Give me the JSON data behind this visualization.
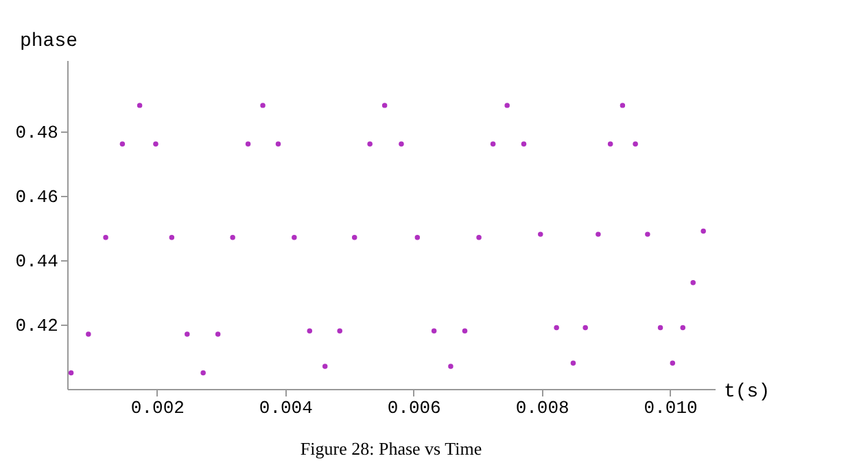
{
  "chart_data": {
    "type": "scatter",
    "xlabel": "t(s)",
    "ylabel": "phase",
    "annotations": [
      "Figure 28: Phase vs Time"
    ],
    "xlim": [
      0.0006,
      0.0107
    ],
    "ylim": [
      0.4,
      0.502
    ],
    "xticks": [
      0.002,
      0.004,
      0.006,
      0.008,
      {
        "value": 0.01,
        "label": "0.010"
      }
    ],
    "yticks": [
      0.42,
      0.44,
      0.46,
      0.48
    ],
    "grid": false,
    "series": [
      {
        "color": "#b030c0",
        "x": [
          0.00066,
          0.00093,
          0.0012,
          0.00146,
          0.00173,
          0.00198,
          0.00223,
          0.00247,
          0.00272,
          0.00295,
          0.00318,
          0.00342,
          0.00365,
          0.00389,
          0.00414,
          0.00438,
          0.00462,
          0.00485,
          0.00508,
          0.00532,
          0.00555,
          0.00581,
          0.00606,
          0.00632,
          0.00658,
          0.0068,
          0.00702,
          0.00724,
          0.00746,
          0.00772,
          0.00798,
          0.00823,
          0.00849,
          0.00868,
          0.00888,
          0.00907,
          0.00926,
          0.00946,
          0.00965,
          0.00985,
          0.01004,
          0.0102,
          0.01036,
          0.01052
        ],
        "values": [
          0.405,
          0.417,
          0.447,
          0.476,
          0.488,
          0.476,
          0.447,
          0.417,
          0.405,
          0.417,
          0.447,
          0.476,
          0.488,
          0.476,
          0.447,
          0.418,
          0.407,
          0.418,
          0.447,
          0.476,
          0.488,
          0.476,
          0.447,
          0.418,
          0.407,
          0.418,
          0.447,
          0.476,
          0.488,
          0.476,
          0.448,
          0.419,
          0.408,
          0.419,
          0.448,
          0.476,
          0.488,
          0.476,
          0.448,
          0.419,
          0.408,
          0.419,
          0.433,
          0.449
        ]
      }
    ]
  }
}
